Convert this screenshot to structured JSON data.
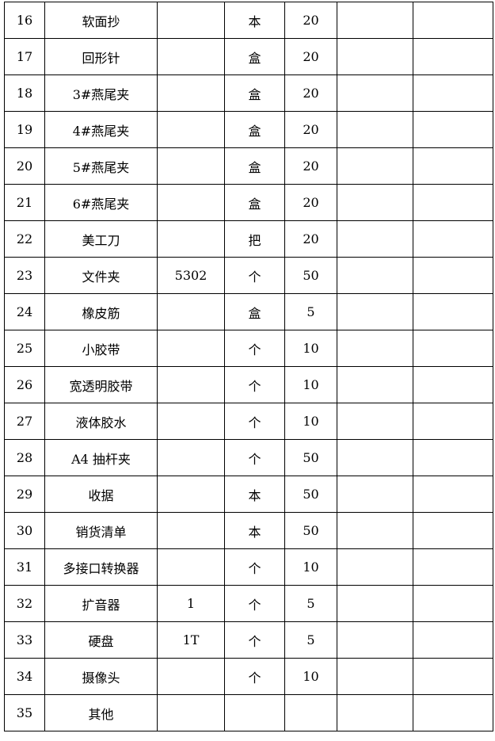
{
  "table": {
    "rows": [
      [
        "16",
        "软面抄",
        "",
        "本",
        "20",
        "",
        ""
      ],
      [
        "17",
        "回形针",
        "",
        "盒",
        "20",
        "",
        ""
      ],
      [
        "18",
        "3#燕尾夹",
        "",
        "盒",
        "20",
        "",
        ""
      ],
      [
        "19",
        "4#燕尾夹",
        "",
        "盒",
        "20",
        "",
        ""
      ],
      [
        "20",
        "5#燕尾夹",
        "",
        "盒",
        "20",
        "",
        ""
      ],
      [
        "21",
        "6#燕尾夹",
        "",
        "盒",
        "20",
        "",
        ""
      ],
      [
        "22",
        "美工刀",
        "",
        "把",
        "20",
        "",
        ""
      ],
      [
        "23",
        "文件夹",
        "5302",
        "个",
        "50",
        "",
        ""
      ],
      [
        "24",
        "橡皮筋",
        "",
        "盒",
        "5",
        "",
        ""
      ],
      [
        "25",
        "小胶带",
        "",
        "个",
        "10",
        "",
        ""
      ],
      [
        "26",
        "宽透明胶带",
        "",
        "个",
        "10",
        "",
        ""
      ],
      [
        "27",
        "液体胶水",
        "",
        "个",
        "10",
        "",
        ""
      ],
      [
        "28",
        "A4 抽杆夹",
        "",
        "个",
        "50",
        "",
        ""
      ],
      [
        "29",
        "收据",
        "",
        "本",
        "50",
        "",
        ""
      ],
      [
        "30",
        "销货清单",
        "",
        "本",
        "50",
        "",
        ""
      ],
      [
        "31",
        "多接口转换器",
        "",
        "个",
        "10",
        "",
        ""
      ],
      [
        "32",
        "扩音器",
        "1",
        "个",
        "5",
        "",
        ""
      ],
      [
        "33",
        "硬盘",
        "1T",
        "个",
        "5",
        "",
        ""
      ],
      [
        "34",
        "摄像头",
        "",
        "个",
        "10",
        "",
        ""
      ],
      [
        "35",
        "其他",
        "",
        "",
        "",
        "",
        ""
      ]
    ]
  }
}
